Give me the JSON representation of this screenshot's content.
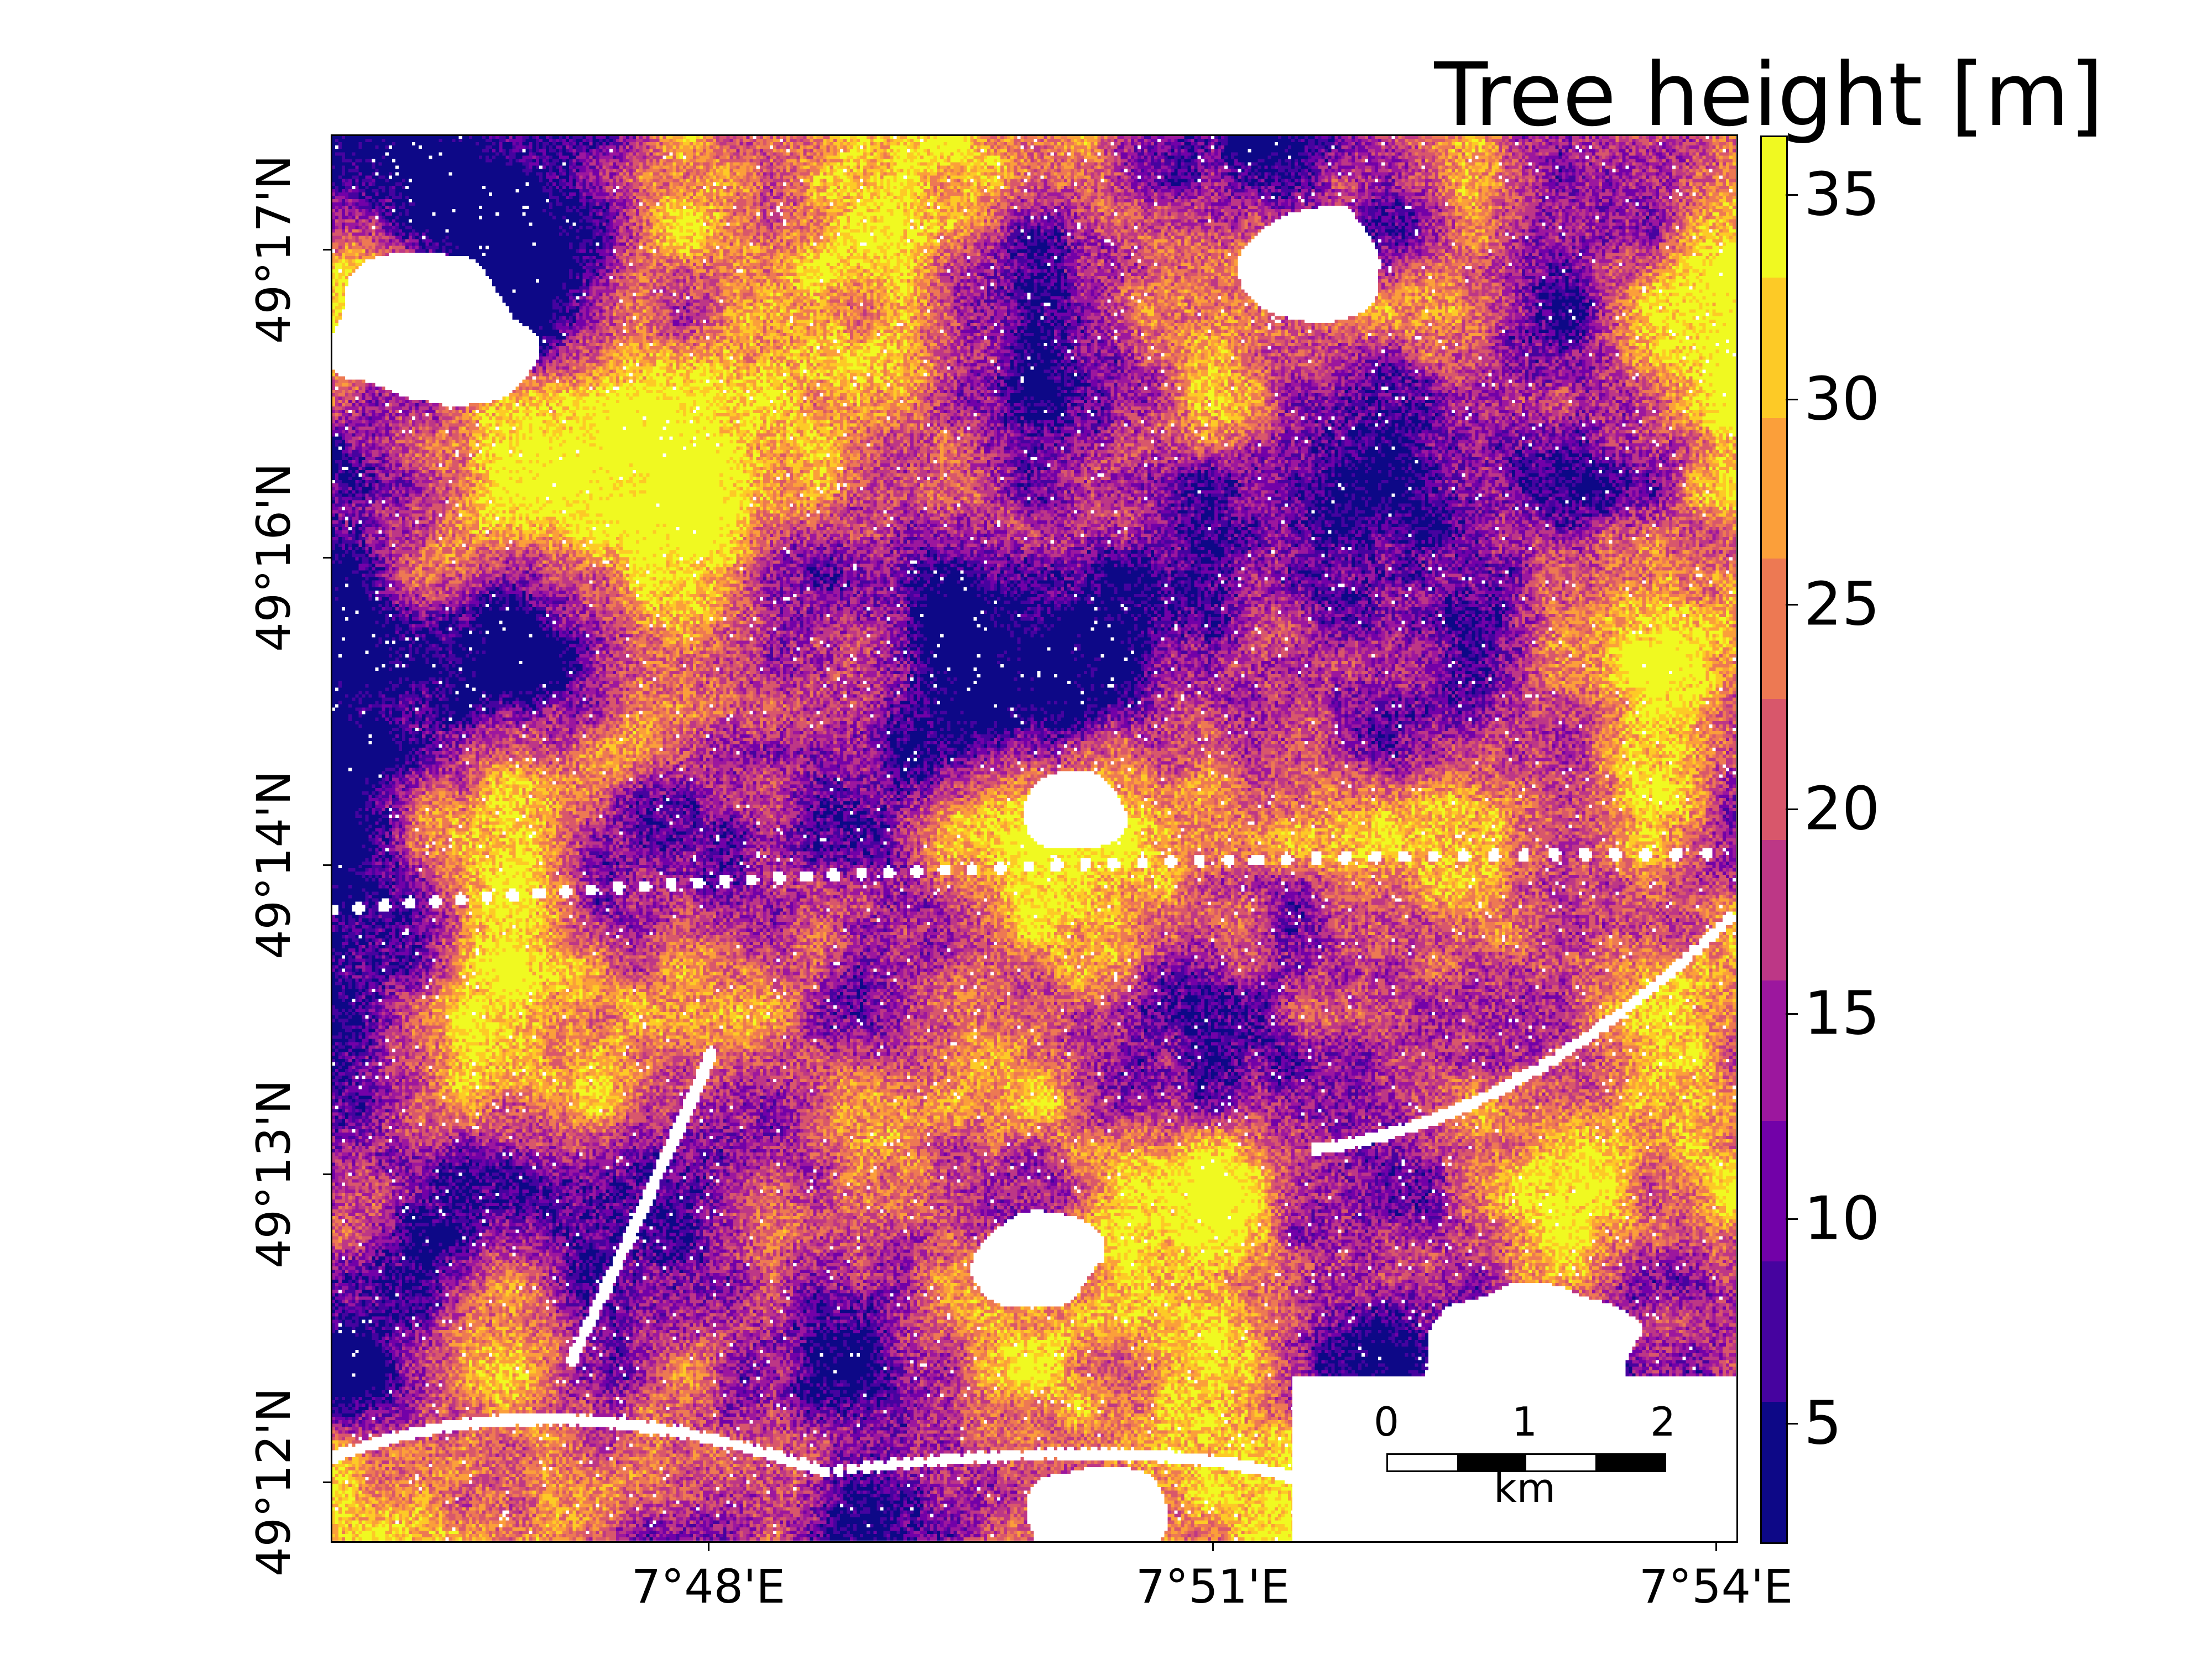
{
  "chart_data": {
    "type": "heatmap",
    "title": "Tree height [m]",
    "colorbar": {
      "label": "Tree height [m]",
      "range": [
        2.1,
        36.4
      ],
      "bins": 10,
      "ticks": [
        5,
        10,
        15,
        20,
        25,
        30,
        35
      ],
      "tick_labels": [
        "5",
        "10",
        "15",
        "20",
        "25",
        "30",
        "35"
      ],
      "colors": [
        "#0d0887",
        "#46039f",
        "#7201a8",
        "#9c179e",
        "#bd3786",
        "#d8576b",
        "#ed7953",
        "#fb9f3a",
        "#fdca26",
        "#f0f921"
      ]
    },
    "y_axis": {
      "tick_labels": [
        "49°17'N",
        "49°16'N",
        "49°14'N",
        "49°13'N",
        "49°12'N"
      ]
    },
    "x_axis": {
      "tick_labels": [
        "7°48'E",
        "7°51'E",
        "7°54'E"
      ]
    },
    "scale_bar": {
      "labels": [
        "0",
        "1",
        "2"
      ],
      "unit": "km"
    },
    "no_data_color": "#ffffff"
  }
}
